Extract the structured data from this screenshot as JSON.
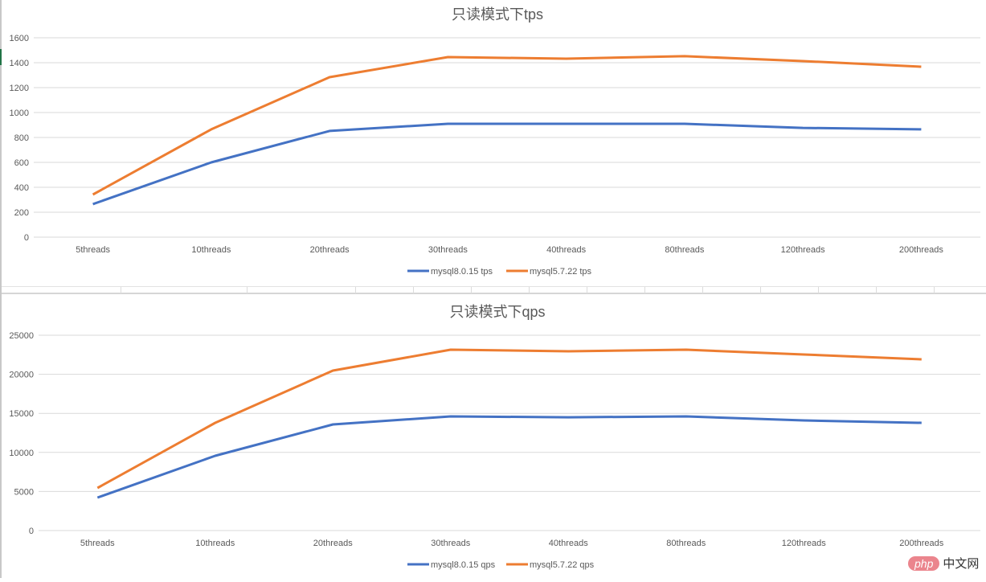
{
  "colors": {
    "series_blue": "#4472C4",
    "series_orange": "#ED7D31",
    "gridline": "#d9d9d9",
    "axis_text": "#595959",
    "title_text": "#595959"
  },
  "watermark": {
    "badge": "php",
    "text": "中文网"
  },
  "chart_data": [
    {
      "type": "line",
      "title": "只读模式下tps",
      "xlabel": "",
      "ylabel": "",
      "categories": [
        "5threads",
        "10threads",
        "20threads",
        "30threads",
        "40threads",
        "80threads",
        "120threads",
        "200threads"
      ],
      "yticks": [
        0,
        200,
        400,
        600,
        800,
        1000,
        1200,
        1400,
        1600
      ],
      "ylim": [
        0,
        1600
      ],
      "grid": true,
      "legend_position": "bottom",
      "series": [
        {
          "name": "mysql8.0.15 tps",
          "color": "#4472C4",
          "values": [
            265,
            600,
            852,
            910,
            910,
            910,
            877,
            865
          ]
        },
        {
          "name": "mysql5.7.22 tps",
          "color": "#ED7D31",
          "values": [
            342,
            865,
            1284,
            1445,
            1432,
            1452,
            1413,
            1368
          ]
        }
      ]
    },
    {
      "type": "line",
      "title": "只读模式下qps",
      "xlabel": "",
      "ylabel": "",
      "categories": [
        "5threads",
        "10threads",
        "20threads",
        "30threads",
        "40threads",
        "80threads",
        "120threads",
        "200threads"
      ],
      "yticks": [
        0,
        5000,
        10000,
        15000,
        20000,
        25000
      ],
      "ylim": [
        0,
        25000
      ],
      "grid": true,
      "legend_position": "bottom",
      "series": [
        {
          "name": "mysql8.0.15 qps",
          "color": "#4472C4",
          "values": [
            4220,
            9570,
            13580,
            14610,
            14500,
            14610,
            14090,
            13790
          ]
        },
        {
          "name": "mysql5.7.22 qps",
          "color": "#ED7D31",
          "values": [
            5450,
            13790,
            20470,
            23150,
            22940,
            23150,
            22530,
            21910
          ]
        }
      ]
    }
  ]
}
